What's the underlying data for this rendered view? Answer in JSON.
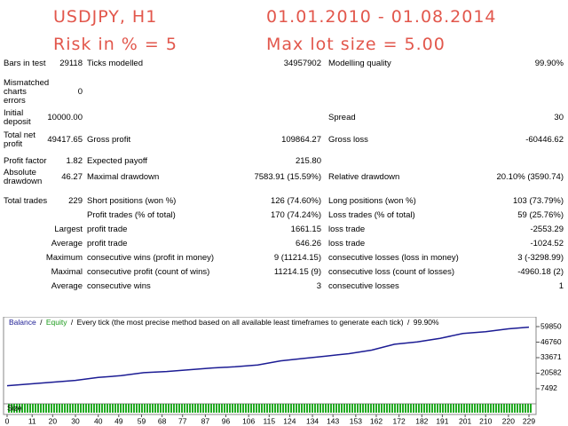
{
  "header": {
    "symbol": "USDJPY, H1",
    "period": "01.01.2010 - 01.08.2014",
    "risk": "Risk in % = 5",
    "max_lot": "Max lot size = 5.00"
  },
  "report": {
    "rows": [
      {
        "cells": [
          {
            "label": "Bars in test",
            "value": "29118"
          },
          {
            "label": "Ticks modelled",
            "value": "34957902"
          },
          {
            "label": "Modelling quality",
            "value": "99.90%"
          }
        ]
      },
      {
        "cells": [
          {
            "label": "Mismatched charts errors",
            "value": "0"
          },
          null,
          null
        ]
      },
      {
        "cells": [
          {
            "label": "Initial deposit",
            "value": "10000.00"
          },
          null,
          {
            "label": "Spread",
            "value": "30"
          }
        ]
      },
      {
        "cells": [
          {
            "label": "Total net profit",
            "value": "49417.65"
          },
          {
            "label": "Gross profit",
            "value": "109864.27"
          },
          {
            "label": "Gross loss",
            "value": "-60446.62"
          }
        ]
      },
      {
        "cells": [
          {
            "label": "Profit factor",
            "value": "1.82"
          },
          {
            "label": "Expected payoff",
            "value": "215.80"
          },
          null
        ]
      },
      {
        "cells": [
          {
            "label": "Absolute drawdown",
            "value": "46.27"
          },
          {
            "label": "Maximal drawdown",
            "value": "7583.91 (15.59%)"
          },
          {
            "label": "Relative drawdown",
            "value": "20.10% (3590.74)"
          }
        ]
      },
      {
        "cells": [
          {
            "label": "Total trades",
            "value": "229"
          },
          {
            "label": "Short positions (won %)",
            "value": "126 (74.60%)"
          },
          {
            "label": "Long positions (won %)",
            "value": "103 (73.79%)"
          }
        ]
      },
      {
        "cells": [
          null,
          {
            "label": "Profit trades (% of total)",
            "value": "170 (74.24%)"
          },
          {
            "label": "Loss trades (% of total)",
            "value": "59 (25.76%)"
          }
        ]
      },
      {
        "cells": [
          {
            "value": "Largest"
          },
          {
            "label": "profit trade",
            "value": "1661.15"
          },
          {
            "label": "loss trade",
            "value": "-2553.29"
          }
        ]
      },
      {
        "cells": [
          {
            "value": "Average"
          },
          {
            "label": "profit trade",
            "value": "646.26"
          },
          {
            "label": "loss trade",
            "value": "-1024.52"
          }
        ]
      },
      {
        "cells": [
          {
            "value": "Maximum"
          },
          {
            "label": "consecutive wins (profit in money)",
            "value": "9 (11214.15)"
          },
          {
            "label": "consecutive losses (loss in money)",
            "value": "3 (-3298.99)"
          }
        ]
      },
      {
        "cells": [
          {
            "value": "Maximal"
          },
          {
            "label": "consecutive profit (count of wins)",
            "value": "11214.15 (9)"
          },
          {
            "label": "consecutive loss (count of losses)",
            "value": "-4960.18 (2)"
          }
        ]
      },
      {
        "cells": [
          {
            "value": "Average"
          },
          {
            "label": "consecutive wins",
            "value": "3"
          },
          {
            "label": "consecutive losses",
            "value": "1"
          }
        ]
      }
    ]
  },
  "chart_data": {
    "type": "line",
    "series": [
      {
        "name": "Balance",
        "color": "#1c1c94",
        "x": [
          0,
          10,
          20,
          30,
          40,
          50,
          60,
          70,
          80,
          90,
          100,
          110,
          120,
          130,
          140,
          150,
          160,
          170,
          180,
          190,
          200,
          210,
          220,
          229
        ],
        "values": [
          10000,
          11500,
          13000,
          14500,
          17000,
          18500,
          21000,
          22000,
          23500,
          25000,
          26000,
          27500,
          31000,
          33000,
          35000,
          37000,
          40000,
          45000,
          47000,
          50000,
          54000,
          55500,
          58000,
          59418
        ]
      }
    ],
    "equity_label": "Equity",
    "equity_color": "#1a9a1a",
    "separator": "/",
    "legend_note": "Every tick (the most precise method based on all available least timeframes to generate each tick)",
    "quality": "99.90%",
    "size_label": "Size",
    "xlim": [
      0,
      229
    ],
    "xticks": [
      0,
      11,
      20,
      30,
      40,
      49,
      59,
      68,
      77,
      87,
      96,
      106,
      115,
      124,
      134,
      143,
      153,
      162,
      172,
      182,
      191,
      201,
      210,
      220,
      229
    ],
    "ylim": [
      -2980,
      65834
    ],
    "yticks": [
      7492,
      20582,
      33671,
      46760,
      59850
    ]
  }
}
